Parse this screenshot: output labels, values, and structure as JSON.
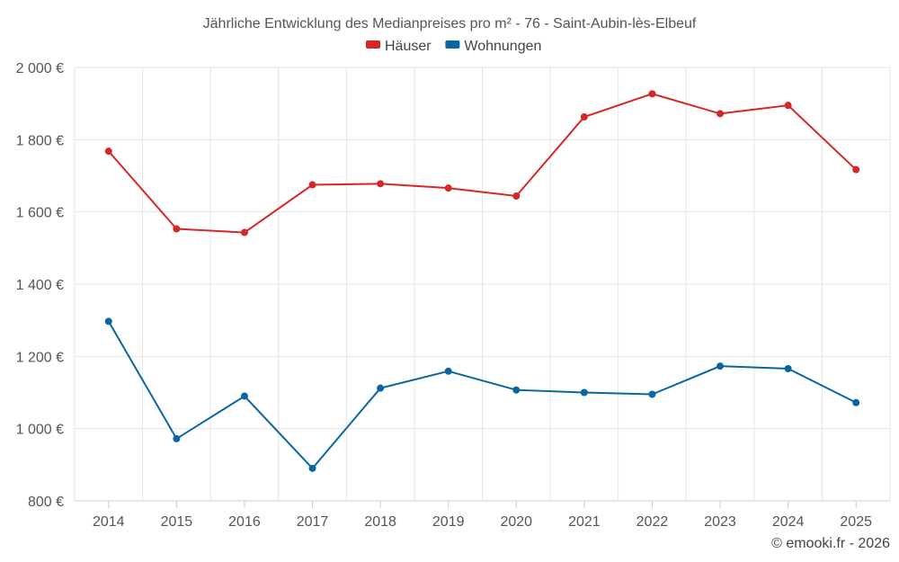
{
  "chart_data": {
    "type": "line",
    "title": "Jährliche Entwicklung des Medianpreises pro m² - 76 - Saint-Aubin-lès-Elbeuf",
    "categories": [
      "2014",
      "2015",
      "2016",
      "2017",
      "2018",
      "2019",
      "2020",
      "2021",
      "2022",
      "2023",
      "2024",
      "2025"
    ],
    "ylim": [
      800,
      2000
    ],
    "yticks": [
      800,
      1000,
      1200,
      1400,
      1600,
      1800,
      2000
    ],
    "ytick_labels": [
      "800 €",
      "1 000 €",
      "1 200 €",
      "1 400 €",
      "1 600 €",
      "1 800 €",
      "2 000 €"
    ],
    "grid": true,
    "legend_position": "top-center",
    "series": [
      {
        "name": "Häuser",
        "color": "#d62728",
        "values": [
          1768,
          1553,
          1543,
          1675,
          1678,
          1666,
          1644,
          1863,
          1927,
          1872,
          1895,
          1717
        ]
      },
      {
        "name": "Wohnungen",
        "color": "#0a66a0",
        "values": [
          1297,
          972,
          1090,
          890,
          1112,
          1159,
          1107,
          1100,
          1095,
          1173,
          1166,
          1072
        ]
      }
    ]
  },
  "credit": "© emooki.fr - 2026"
}
